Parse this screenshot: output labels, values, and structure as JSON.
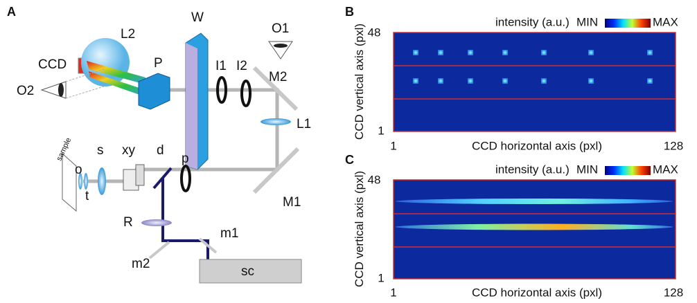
{
  "panel_a": {
    "label": "A",
    "components": {
      "ccd": "CCD",
      "l2": "L2",
      "w": "W",
      "o1": "O1",
      "p_cube": "P",
      "i1": "I1",
      "i2": "I2",
      "m2": "M2",
      "o2": "O2",
      "l1": "L1",
      "sample": "sample",
      "s": "s",
      "xy": "xy",
      "d": "d",
      "p": "p",
      "o": "o",
      "t": "t",
      "m1": "M1",
      "r": "R",
      "m1_small": "m1",
      "m2_small": "m2",
      "sc": "sc"
    }
  },
  "panel_b": {
    "label": "B",
    "colorbar_title": "intensity (a.u.)",
    "colorbar_min": "MIN",
    "colorbar_max": "MAX",
    "y_axis_title": "CCD vertical axis (pxl)",
    "x_axis_title": "CCD horizontal axis (pxl)",
    "y_top": "48",
    "y_bottom": "1",
    "x_left": "1",
    "x_right": "128"
  },
  "panel_c": {
    "label": "C",
    "colorbar_title": "intensity (a.u.)",
    "colorbar_min": "MIN",
    "colorbar_max": "MAX",
    "y_axis_title": "CCD vertical axis (pxl)",
    "x_axis_title": "CCD horizontal axis (pxl)",
    "y_top": "48",
    "y_bottom": "1",
    "x_left": "1",
    "x_right": "128"
  }
}
